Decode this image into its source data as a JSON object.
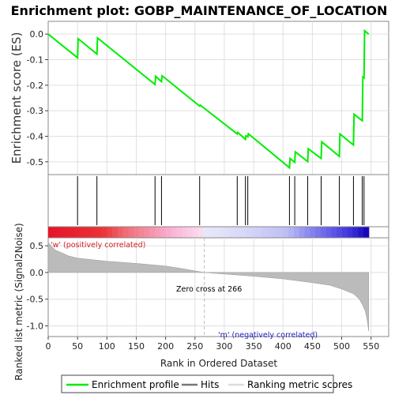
{
  "chart_data": {
    "type": "line",
    "title": "Enrichment plot: GOBP_MAINTENANCE_OF_LOCATION",
    "top_panel": {
      "ylabel": "Enrichment score (ES)",
      "ylim": [
        -0.55,
        0.05
      ],
      "yticks": [
        "0.0",
        "-0.1",
        "-0.2",
        "-0.3",
        "-0.4",
        "-0.5"
      ],
      "grid": true,
      "series": [
        {
          "name": "Enrichment profile",
          "color": "#00ee00",
          "points": [
            [
              0,
              0.0
            ],
            [
              50,
              -0.093
            ],
            [
              51,
              -0.018
            ],
            [
              83,
              -0.078
            ],
            [
              84,
              -0.015
            ],
            [
              182,
              -0.197
            ],
            [
              183,
              -0.165
            ],
            [
              193,
              -0.186
            ],
            [
              194,
              -0.163
            ],
            [
              258,
              -0.282
            ],
            [
              259,
              -0.278
            ],
            [
              322,
              -0.391
            ],
            [
              323,
              -0.385
            ],
            [
              336,
              -0.412
            ],
            [
              337,
              -0.398
            ],
            [
              340,
              -0.402
            ],
            [
              341,
              -0.39
            ],
            [
              411,
              -0.523
            ],
            [
              412,
              -0.487
            ],
            [
              420,
              -0.502
            ],
            [
              421,
              -0.461
            ],
            [
              442,
              -0.499
            ],
            [
              443,
              -0.449
            ],
            [
              465,
              -0.487
            ],
            [
              466,
              -0.422
            ],
            [
              496,
              -0.479
            ],
            [
              497,
              -0.391
            ],
            [
              520,
              -0.434
            ],
            [
              521,
              -0.314
            ],
            [
              535,
              -0.339
            ],
            [
              536,
              -0.168
            ],
            [
              538,
              -0.171
            ],
            [
              539,
              0.013
            ],
            [
              546,
              0.0
            ]
          ]
        }
      ]
    },
    "hits_panel": {
      "name": "Hits",
      "positions": [
        50,
        83,
        182,
        193,
        258,
        322,
        336,
        340,
        411,
        420,
        442,
        465,
        496,
        520,
        535,
        538
      ]
    },
    "bottom_panel": {
      "name": "Ranking metric scores",
      "ylabel": "Ranked list metric (Signal2Noise)",
      "xlabel": "Rank in Ordered Dataset",
      "xlim": [
        0,
        580
      ],
      "xticks": [
        "0",
        "50",
        "100",
        "150",
        "200",
        "250",
        "300",
        "350",
        "400",
        "450",
        "500",
        "550"
      ],
      "ylim": [
        -1.2,
        0.65
      ],
      "yticks": [
        "0.5",
        "0.0",
        "-0.5",
        "-1.0"
      ],
      "n_genes": 546,
      "zero_cross": 266,
      "zero_cross_label": "Zero cross at 266",
      "positive_label": "'w' (positively correlated)",
      "negative_label": "'m' (negatively correlated)",
      "metric_profile": [
        [
          0,
          0.57
        ],
        [
          5,
          0.5
        ],
        [
          12,
          0.42
        ],
        [
          25,
          0.36
        ],
        [
          35,
          0.31
        ],
        [
          50,
          0.27
        ],
        [
          75,
          0.24
        ],
        [
          100,
          0.21
        ],
        [
          150,
          0.17
        ],
        [
          200,
          0.12
        ],
        [
          230,
          0.07
        ],
        [
          250,
          0.03
        ],
        [
          266,
          0.0
        ],
        [
          300,
          -0.03
        ],
        [
          350,
          -0.07
        ],
        [
          400,
          -0.12
        ],
        [
          450,
          -0.19
        ],
        [
          480,
          -0.24
        ],
        [
          500,
          -0.31
        ],
        [
          520,
          -0.4
        ],
        [
          530,
          -0.5
        ],
        [
          536,
          -0.62
        ],
        [
          540,
          -0.72
        ],
        [
          543,
          -0.87
        ],
        [
          545,
          -1.02
        ],
        [
          546,
          -1.1
        ]
      ]
    },
    "legend": [
      "Enrichment profile",
      "Hits",
      "Ranking metric scores"
    ],
    "colors": {
      "profile": "#00ee00",
      "hits": "#000000",
      "metric_fill": "#bbbbbb",
      "grid": "#e0e0e0"
    }
  }
}
